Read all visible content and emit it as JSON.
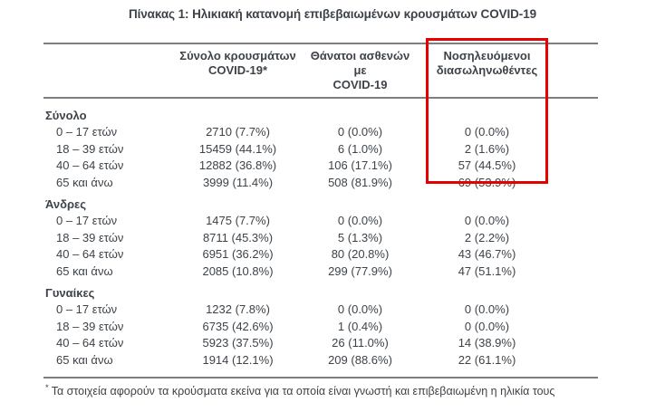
{
  "page": {
    "title": "Πίνακας 1: Ηλικιακή κατανομή επιβεβαιωμένων κρουσμάτων COVID-19"
  },
  "table": {
    "columns": [
      {
        "line1": "Σύνολο κρουσμάτων",
        "line2": "COVID-19*"
      },
      {
        "line1": "Θάνατοι ασθενών με",
        "line2": "COVID-19"
      },
      {
        "line1": "Νοσηλευόμενοι",
        "line2": "διασωληνωθέντες"
      }
    ],
    "sections": [
      {
        "label": "Σύνολο",
        "rows": [
          {
            "age": "0 – 17 ετών",
            "cases": "2710 (7.7%)",
            "deaths": "0 (0.0%)",
            "intubated": "0 (0.0%)"
          },
          {
            "age": "18 – 39 ετών",
            "cases": "15459 (44.1%)",
            "deaths": "6 (1.0%)",
            "intubated": "2 (1.6%)"
          },
          {
            "age": "40 – 64 ετών",
            "cases": "12882 (36.8%)",
            "deaths": "106 (17.1%)",
            "intubated": "57 (44.5%)"
          },
          {
            "age": "65 και άνω",
            "cases": "3999 (11.4%)",
            "deaths": "508 (81.9%)",
            "intubated": "69 (53.9%)"
          }
        ]
      },
      {
        "label": "Άνδρες",
        "rows": [
          {
            "age": "0 – 17 ετών",
            "cases": "1475 (7.7%)",
            "deaths": "0 (0.0%)",
            "intubated": "0 (0.0%)"
          },
          {
            "age": "18 – 39 ετών",
            "cases": "8711 (45.3%)",
            "deaths": "5 (1.3%)",
            "intubated": "2 (2.2%)"
          },
          {
            "age": "40 – 64 ετών",
            "cases": "6951 (36.2%)",
            "deaths": "80 (20.8%)",
            "intubated": "43 (46.7%)"
          },
          {
            "age": "65 και άνω",
            "cases": "2085 (10.8%)",
            "deaths": "299 (77.9%)",
            "intubated": "47 (51.1%)"
          }
        ]
      },
      {
        "label": "Γυναίκες",
        "rows": [
          {
            "age": "0 – 17 ετών",
            "cases": "1232 (7.8%)",
            "deaths": "0 (0.0%)",
            "intubated": "0 (0.0%)"
          },
          {
            "age": "18 – 39 ετών",
            "cases": "6735 (42.6%)",
            "deaths": "1 (0.4%)",
            "intubated": "0 (0.0%)"
          },
          {
            "age": "40 – 64 ετών",
            "cases": "5923 (37.5%)",
            "deaths": "26 (11.0%)",
            "intubated": "14 (38.9%)"
          },
          {
            "age": "65 και άνω",
            "cases": "1914 (12.1%)",
            "deaths": "209 (88.6%)",
            "intubated": "22 (61.1%)"
          }
        ]
      }
    ],
    "footnote": {
      "marker": "*",
      "text": "Τα στοιχεία αφορούν τα κρούσματα εκείνα για τα οποία είναι γνωστή και επιβεβαιωμένη η ηλικία τους"
    },
    "highlight": {
      "column": "Νοσηλευόμενοι διασωληνωθέντες"
    }
  },
  "colors": {
    "text": "#3d4349",
    "rule": "#7e7e7e",
    "highlight": "#e60000",
    "background": "#ffffff"
  }
}
